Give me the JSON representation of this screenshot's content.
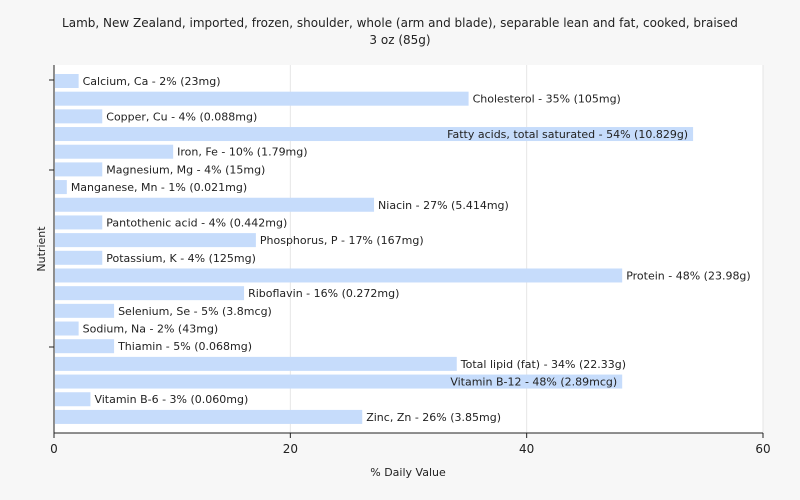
{
  "chart_data": {
    "type": "bar",
    "orientation": "horizontal",
    "title": "Lamb, New Zealand, imported, frozen, shoulder, whole (arm and blade), separable lean and fat, cooked, braised",
    "subtitle": "3 oz (85g)",
    "xlabel": "% Daily Value",
    "ylabel": "Nutrient",
    "xlim": [
      0,
      60
    ],
    "xticks": [
      0,
      20,
      40,
      60
    ],
    "grid": true,
    "bar_color": "#c6dcfb",
    "categories": [
      "Calcium, Ca - 2% (23mg)",
      "Cholesterol - 35% (105mg)",
      "Copper, Cu - 4% (0.088mg)",
      "Fatty acids, total saturated - 54% (10.829g)",
      "Iron, Fe - 10% (1.79mg)",
      "Magnesium, Mg - 4% (15mg)",
      "Manganese, Mn - 1% (0.021mg)",
      "Niacin - 27% (5.414mg)",
      "Pantothenic acid - 4% (0.442mg)",
      "Phosphorus, P - 17% (167mg)",
      "Potassium, K - 4% (125mg)",
      "Protein - 48% (23.98g)",
      "Riboflavin - 16% (0.272mg)",
      "Selenium, Se - 5% (3.8mcg)",
      "Sodium, Na - 2% (43mg)",
      "Thiamin - 5% (0.068mg)",
      "Total lipid (fat) - 34% (22.33g)",
      "Vitamin B-12 - 48% (2.89mcg)",
      "Vitamin B-6 - 3% (0.060mg)",
      "Zinc, Zn - 26% (3.85mg)"
    ],
    "values": [
      2,
      35,
      4,
      54,
      10,
      4,
      1,
      27,
      4,
      17,
      4,
      48,
      16,
      5,
      2,
      5,
      34,
      48,
      3,
      26
    ]
  }
}
